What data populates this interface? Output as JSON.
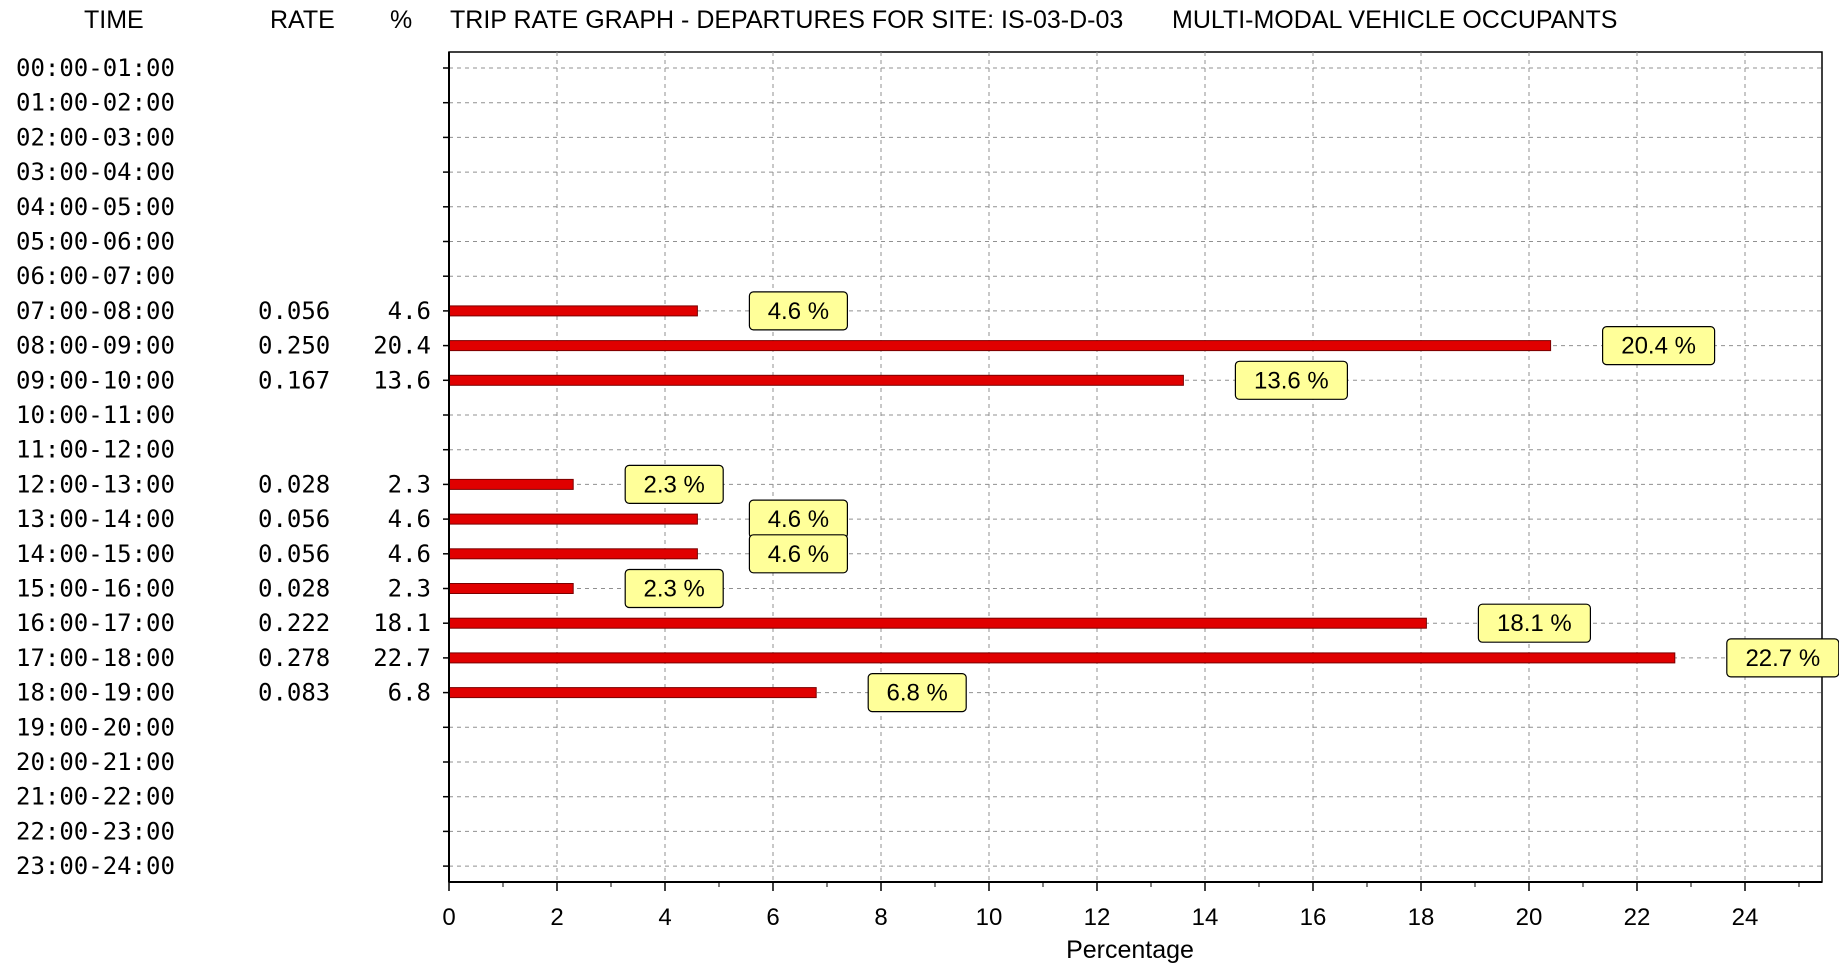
{
  "header": {
    "time": "TIME",
    "rate": "RATE",
    "percent": "%",
    "title": "TRIP RATE GRAPH - DEPARTURES FOR SITE: IS-03-D-03",
    "subtitle": "MULTI-MODAL  VEHICLE OCCUPANTS"
  },
  "colors": {
    "bar": "#e00000",
    "bar_border": "#7a0000",
    "label_bg": "#ffff99",
    "grid": "#909090"
  },
  "chart_data": {
    "type": "bar",
    "orientation": "horizontal",
    "title": "TRIP RATE GRAPH - DEPARTURES FOR SITE: IS-03-D-03",
    "subtitle": "MULTI-MODAL  VEHICLE OCCUPANTS",
    "xlabel": "Percentage",
    "xlim": [
      0,
      25
    ],
    "xticks": [
      0,
      2,
      4,
      6,
      8,
      10,
      12,
      14,
      16,
      18,
      20,
      22,
      24
    ],
    "grid": true,
    "categories": [
      "00:00-01:00",
      "01:00-02:00",
      "02:00-03:00",
      "03:00-04:00",
      "04:00-05:00",
      "05:00-06:00",
      "06:00-07:00",
      "07:00-08:00",
      "08:00-09:00",
      "09:00-10:00",
      "10:00-11:00",
      "11:00-12:00",
      "12:00-13:00",
      "13:00-14:00",
      "14:00-15:00",
      "15:00-16:00",
      "16:00-17:00",
      "17:00-18:00",
      "18:00-19:00",
      "19:00-20:00",
      "20:00-21:00",
      "21:00-22:00",
      "22:00-23:00",
      "23:00-24:00"
    ],
    "rates": [
      "",
      "",
      "",
      "",
      "",
      "",
      "",
      "0.056",
      "0.250",
      "0.167",
      "",
      "",
      "0.028",
      "0.056",
      "0.056",
      "0.028",
      "0.222",
      "0.278",
      "0.083",
      "",
      "",
      "",
      "",
      ""
    ],
    "percent_text": [
      "",
      "",
      "",
      "",
      "",
      "",
      "",
      "4.6",
      "20.4",
      "13.6",
      "",
      "",
      "2.3",
      "4.6",
      "4.6",
      "2.3",
      "18.1",
      "22.7",
      "6.8",
      "",
      "",
      "",
      "",
      ""
    ],
    "values": [
      null,
      null,
      null,
      null,
      null,
      null,
      null,
      4.6,
      20.4,
      13.6,
      null,
      null,
      2.3,
      4.6,
      4.6,
      2.3,
      18.1,
      22.7,
      6.8,
      null,
      null,
      null,
      null,
      null
    ],
    "bar_labels": [
      "",
      "",
      "",
      "",
      "",
      "",
      "",
      "4.6 %",
      "20.4 %",
      "13.6 %",
      "",
      "",
      "2.3 %",
      "4.6 %",
      "4.6 %",
      "2.3 %",
      "18.1 %",
      "22.7 %",
      "6.8 %",
      "",
      "",
      "",
      "",
      ""
    ]
  }
}
